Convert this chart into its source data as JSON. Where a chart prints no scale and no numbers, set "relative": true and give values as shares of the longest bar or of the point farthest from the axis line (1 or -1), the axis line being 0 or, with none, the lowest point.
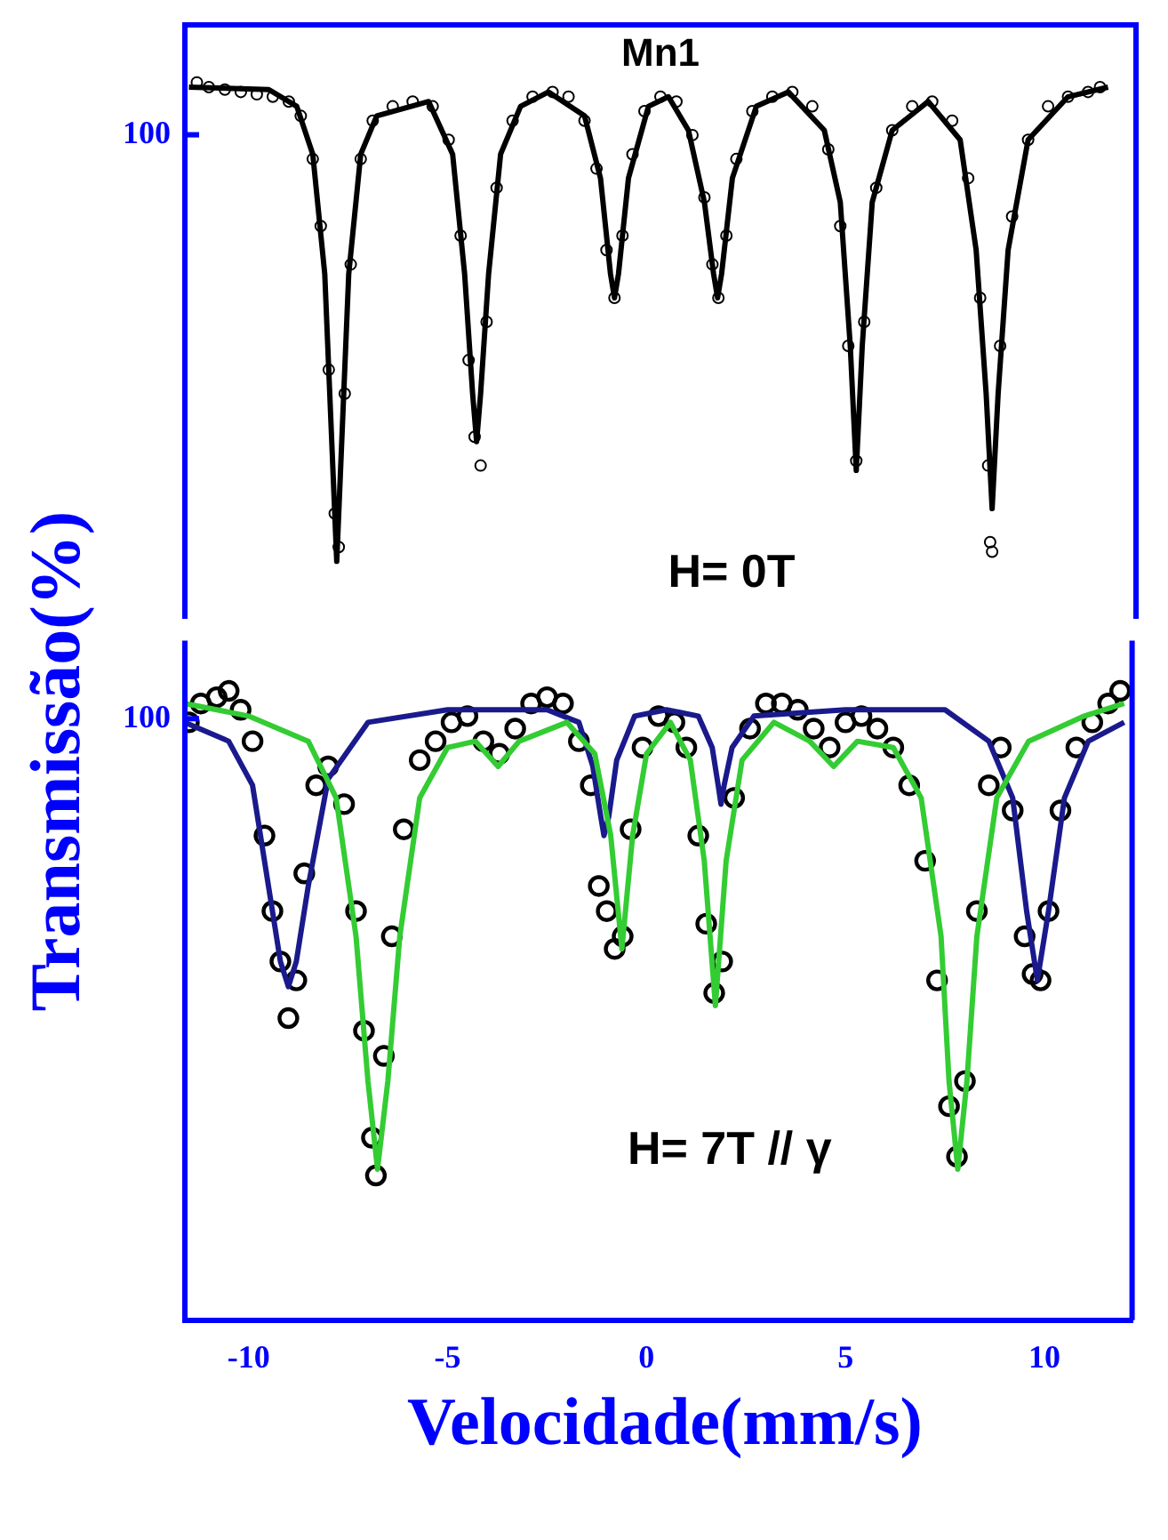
{
  "chart_data": [
    {
      "type": "scatter",
      "title": "Mn1",
      "ylabel": "Transmissão(%)",
      "relative": true,
      "xlim": [
        -11.6,
        12.2
      ],
      "xticks": [
        -10,
        -5,
        0,
        5,
        10
      ],
      "tick_labels": false,
      "annotations": [
        "H= 0T",
        "100"
      ],
      "series": [
        {
          "type": "scatter",
          "marker": "circle",
          "color": "#000000",
          "x": [
            -11.3,
            -11.0,
            -10.6,
            -10.2,
            -9.8,
            -9.4,
            -9.0,
            -8.7,
            -8.4,
            -8.2,
            -8.0,
            -7.85,
            -7.75,
            -7.6,
            -7.45,
            -7.2,
            -6.9,
            -6.4,
            -5.9,
            -5.4,
            -5.0,
            -4.7,
            -4.5,
            -4.35,
            -4.2,
            -4.05,
            -3.8,
            -3.4,
            -2.9,
            -2.4,
            -2.0,
            -1.6,
            -1.3,
            -1.05,
            -0.85,
            -0.65,
            -0.4,
            -0.1,
            0.3,
            0.7,
            1.1,
            1.4,
            1.6,
            1.75,
            1.95,
            2.2,
            2.6,
            3.1,
            3.6,
            4.1,
            4.5,
            4.8,
            5.0,
            5.2,
            5.4,
            5.7,
            6.1,
            6.6,
            7.1,
            7.6,
            8.0,
            8.3,
            8.5,
            8.55,
            8.6,
            8.8,
            9.1,
            9.5,
            10.0,
            10.5,
            11.0,
            11.3
          ],
          "values": [
            1.0,
            0.99,
            0.985,
            0.98,
            0.975,
            0.97,
            0.96,
            0.93,
            0.84,
            0.7,
            0.4,
            0.1,
            0.03,
            0.35,
            0.62,
            0.84,
            0.92,
            0.95,
            0.96,
            0.95,
            0.88,
            0.68,
            0.42,
            0.26,
            0.2,
            0.5,
            0.78,
            0.92,
            0.97,
            0.98,
            0.97,
            0.92,
            0.82,
            0.65,
            0.55,
            0.68,
            0.85,
            0.94,
            0.97,
            0.96,
            0.89,
            0.76,
            0.62,
            0.55,
            0.68,
            0.84,
            0.94,
            0.97,
            0.98,
            0.95,
            0.86,
            0.7,
            0.45,
            0.21,
            0.5,
            0.78,
            0.9,
            0.95,
            0.96,
            0.92,
            0.8,
            0.55,
            0.2,
            0.04,
            0.02,
            0.45,
            0.72,
            0.88,
            0.95,
            0.97,
            0.98,
            0.99
          ]
        },
        {
          "type": "line",
          "marker": "none",
          "color": "#000000",
          "x": [
            -11.5,
            -9.5,
            -8.8,
            -8.4,
            -8.1,
            -7.95,
            -7.8,
            -7.65,
            -7.5,
            -7.2,
            -6.8,
            -5.5,
            -4.9,
            -4.6,
            -4.4,
            -4.3,
            -4.2,
            -4.0,
            -3.7,
            -3.2,
            -2.5,
            -1.6,
            -1.2,
            -0.95,
            -0.85,
            -0.75,
            -0.5,
            0.0,
            0.5,
            1.0,
            1.4,
            1.63,
            1.73,
            1.83,
            2.1,
            2.7,
            3.5,
            4.4,
            4.8,
            5.05,
            5.2,
            5.35,
            5.6,
            6.1,
            7.0,
            7.8,
            8.2,
            8.45,
            8.6,
            8.75,
            9.0,
            9.5,
            10.5,
            11.5
          ],
          "values": [
            0.99,
            0.985,
            0.95,
            0.85,
            0.6,
            0.3,
            0.0,
            0.3,
            0.6,
            0.85,
            0.93,
            0.96,
            0.85,
            0.6,
            0.35,
            0.25,
            0.35,
            0.6,
            0.85,
            0.95,
            0.98,
            0.93,
            0.8,
            0.6,
            0.55,
            0.6,
            0.8,
            0.95,
            0.97,
            0.9,
            0.75,
            0.6,
            0.55,
            0.6,
            0.8,
            0.95,
            0.98,
            0.9,
            0.75,
            0.45,
            0.19,
            0.45,
            0.75,
            0.9,
            0.96,
            0.88,
            0.65,
            0.35,
            0.11,
            0.35,
            0.65,
            0.88,
            0.97,
            0.99
          ]
        }
      ]
    },
    {
      "type": "scatter",
      "xlabel": "Velocidade(mm/s)",
      "relative": true,
      "xlim": [
        -11.6,
        12.2
      ],
      "xticks": [
        -10,
        -5,
        0,
        5,
        10
      ],
      "tick_labels": "x",
      "annotations": [
        "H= 7T // γ",
        "100"
      ],
      "series": [
        {
          "type": "scatter",
          "marker": "circle",
          "color": "#000000",
          "x": [
            -11.5,
            -11.2,
            -10.8,
            -10.5,
            -10.2,
            -9.9,
            -9.6,
            -9.4,
            -9.2,
            -9.0,
            -8.8,
            -8.6,
            -8.3,
            -8.0,
            -7.6,
            -7.3,
            -7.1,
            -6.9,
            -6.8,
            -6.6,
            -6.4,
            -6.1,
            -5.7,
            -5.3,
            -4.9,
            -4.5,
            -4.1,
            -3.7,
            -3.3,
            -2.9,
            -2.5,
            -2.1,
            -1.7,
            -1.4,
            -1.2,
            -1.0,
            -0.8,
            -0.6,
            -0.4,
            -0.1,
            0.3,
            0.7,
            1.0,
            1.3,
            1.5,
            1.7,
            1.9,
            2.2,
            2.6,
            3.0,
            3.4,
            3.8,
            4.2,
            4.6,
            5.0,
            5.4,
            5.8,
            6.2,
            6.6,
            7.0,
            7.3,
            7.6,
            7.8,
            8.0,
            8.3,
            8.6,
            8.9,
            9.2,
            9.5,
            9.7,
            9.9,
            10.1,
            10.4,
            10.8,
            11.2,
            11.6,
            11.9
          ],
          "values": [
            0.95,
            0.98,
            0.99,
            1.0,
            0.97,
            0.92,
            0.77,
            0.65,
            0.57,
            0.48,
            0.54,
            0.71,
            0.85,
            0.88,
            0.82,
            0.65,
            0.46,
            0.29,
            0.23,
            0.42,
            0.61,
            0.78,
            0.89,
            0.92,
            0.95,
            0.96,
            0.92,
            0.9,
            0.94,
            0.98,
            0.99,
            0.98,
            0.92,
            0.85,
            0.69,
            0.65,
            0.59,
            0.61,
            0.78,
            0.91,
            0.96,
            0.95,
            0.91,
            0.77,
            0.63,
            0.52,
            0.57,
            0.83,
            0.94,
            0.98,
            0.98,
            0.97,
            0.94,
            0.91,
            0.95,
            0.96,
            0.94,
            0.91,
            0.85,
            0.73,
            0.54,
            0.34,
            0.26,
            0.38,
            0.65,
            0.85,
            0.91,
            0.81,
            0.61,
            0.55,
            0.54,
            0.65,
            0.81,
            0.91,
            0.95,
            0.98,
            1.0
          ]
        },
        {
          "type": "line",
          "marker": "none",
          "color": "#1a1a8c",
          "x": [
            -11.6,
            -10.5,
            -9.9,
            -9.5,
            -9.2,
            -9.0,
            -8.8,
            -8.5,
            -8.0,
            -7.0,
            -5.0,
            -2.5,
            -1.7,
            -1.35,
            -1.15,
            -1.07,
            -0.95,
            -0.75,
            -0.3,
            0.5,
            1.3,
            1.65,
            1.8,
            1.87,
            1.95,
            2.15,
            2.7,
            5.0,
            7.5,
            8.6,
            9.2,
            9.55,
            9.82,
            10.1,
            10.5,
            11.1,
            12.0
          ],
          "values": [
            0.95,
            0.92,
            0.85,
            0.69,
            0.57,
            0.53,
            0.57,
            0.69,
            0.86,
            0.95,
            0.97,
            0.97,
            0.95,
            0.88,
            0.8,
            0.77,
            0.8,
            0.89,
            0.96,
            0.97,
            0.96,
            0.91,
            0.85,
            0.82,
            0.85,
            0.91,
            0.96,
            0.97,
            0.97,
            0.92,
            0.83,
            0.65,
            0.54,
            0.65,
            0.83,
            0.92,
            0.95
          ]
        },
        {
          "type": "line",
          "marker": "none",
          "color": "#33cc33",
          "x": [
            -11.6,
            -10.0,
            -8.5,
            -7.8,
            -7.3,
            -7.0,
            -6.76,
            -6.5,
            -6.2,
            -5.7,
            -5.0,
            -4.3,
            -3.73,
            -3.2,
            -2.0,
            -1.3,
            -0.9,
            -0.62,
            -0.35,
            0.0,
            0.6,
            1.1,
            1.45,
            1.73,
            2.0,
            2.4,
            3.2,
            4.1,
            4.7,
            5.3,
            6.2,
            6.9,
            7.4,
            7.6,
            7.82,
            8.05,
            8.3,
            8.8,
            9.6,
            11.0,
            12.0
          ],
          "values": [
            0.98,
            0.96,
            0.92,
            0.83,
            0.61,
            0.38,
            0.24,
            0.38,
            0.61,
            0.83,
            0.91,
            0.92,
            0.88,
            0.92,
            0.95,
            0.9,
            0.77,
            0.59,
            0.77,
            0.9,
            0.95,
            0.89,
            0.73,
            0.5,
            0.73,
            0.89,
            0.95,
            0.92,
            0.88,
            0.92,
            0.91,
            0.83,
            0.61,
            0.38,
            0.24,
            0.38,
            0.61,
            0.83,
            0.92,
            0.96,
            0.98
          ]
        }
      ]
    }
  ]
}
